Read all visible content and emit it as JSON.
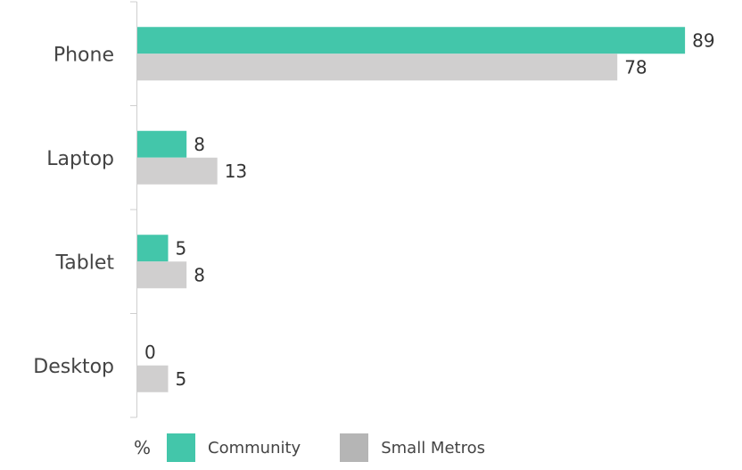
{
  "chart_data": {
    "type": "bar",
    "orientation": "horizontal",
    "categories": [
      "Phone",
      "Laptop",
      "Tablet",
      "Desktop"
    ],
    "series": [
      {
        "name": "Community",
        "color": "#43c6aa",
        "values": [
          89,
          8,
          5,
          0
        ]
      },
      {
        "name": "Small Metros",
        "color": "#d0cfcf",
        "values": [
          78,
          13,
          8,
          5
        ]
      }
    ],
    "unit": "%",
    "legend_position": "bottom-left",
    "grid": false
  },
  "legend": {
    "unit": "%",
    "items": [
      {
        "label": "Community",
        "color": "#43c6aa"
      },
      {
        "label": "Small Metros",
        "color": "#b5b5b5"
      }
    ]
  }
}
